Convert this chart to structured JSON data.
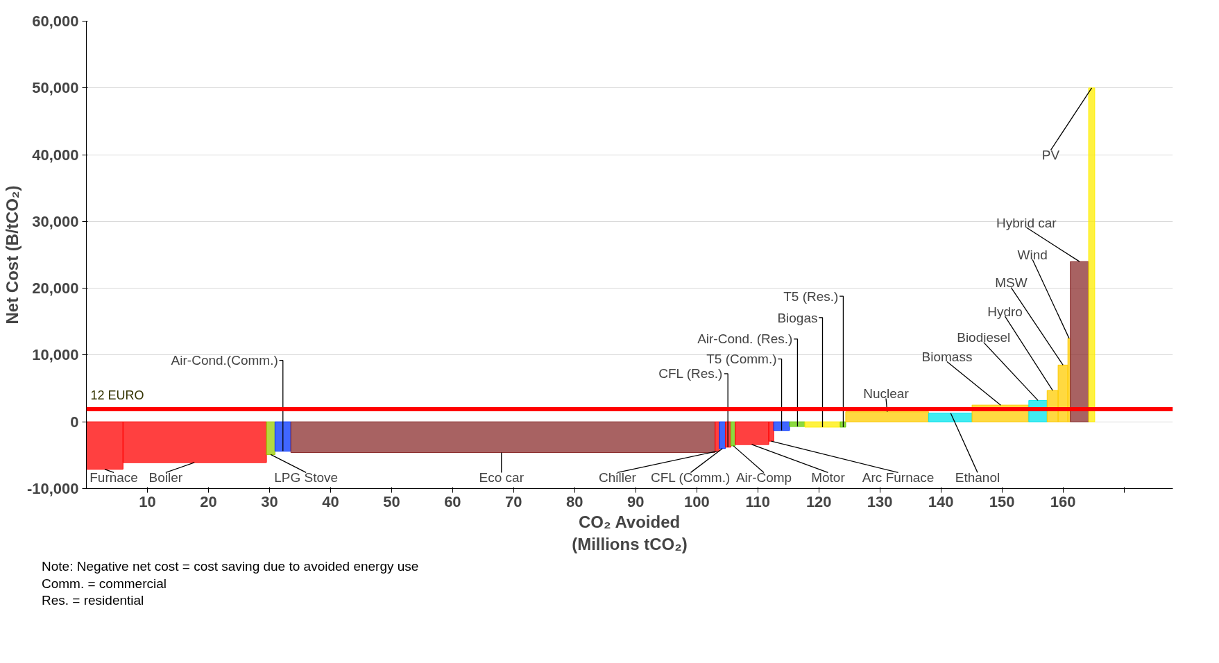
{
  "chart_data": {
    "type": "histogram",
    "xlabel": "CO₂ Avoided\n(Millions tCO₂)",
    "ylabel": "Net Cost (B/tCO₂)",
    "bins": [
      0,
      6.0,
      29.5,
      30.9,
      33.5,
      103.0,
      103.7,
      104.7,
      105.6,
      106.3,
      111.8,
      112.6,
      115.2,
      117.7,
      123.5,
      124.4,
      138.0,
      145.1,
      154.4,
      157.4,
      159.2,
      160.8,
      161.2,
      164.2,
      165.2
    ],
    "values": [
      -7100,
      -6100,
      -4900,
      -4400,
      -4600,
      -4400,
      -4000,
      -3800,
      -3600,
      -3400,
      -2900,
      -1300,
      -700,
      -800,
      -800,
      1500,
      1300,
      2500,
      3200,
      4700,
      8500,
      12500,
      24000,
      50000
    ],
    "colors": [
      "#ff0000",
      "#ff0000",
      "#99cc00",
      "#0033ff",
      "#8b2d2d",
      "#ff0000",
      "#0033ff",
      "#ff0000",
      "#66cc00",
      "#ff0000",
      "#ff0000",
      "#0033ff",
      "#66cc00",
      "#ffee00",
      "#66cc00",
      "#ffcc00",
      "#00e5ee",
      "#ffcc00",
      "#00e5ee",
      "#ffcc00",
      "#ffcc00",
      "#ffcc00",
      "#8b2d2d",
      "#ffee00"
    ],
    "xlim": [
      0,
      178
    ],
    "xticks": [
      10,
      20,
      30,
      40,
      50,
      60,
      70,
      80,
      90,
      100,
      110,
      120,
      130,
      140,
      150,
      160,
      {
        "value": 170,
        "label": null
      }
    ],
    "ylim": [
      -10000,
      60000
    ],
    "yticks": [
      {
        "value": -10000,
        "label": "-10,000"
      },
      0,
      {
        "value": 10000,
        "label": "10,000"
      },
      {
        "value": 20000,
        "label": "20,000"
      },
      {
        "value": 30000,
        "label": "30,000"
      },
      {
        "value": 40000,
        "label": "40,000"
      },
      {
        "value": 50000,
        "label": "50,000"
      },
      {
        "value": 60000,
        "label": "60,000"
      }
    ],
    "grid": "y",
    "ref_lines": [
      {
        "axis": "y",
        "value": 1900,
        "label": "12 EURO",
        "color": "#ff0000"
      }
    ],
    "annotations": [
      {
        "text": "Furnace",
        "x": 3.0,
        "y": -7100
      },
      {
        "text": "Boiler",
        "x": 17.7,
        "y": -6100
      },
      {
        "text": "LPG Stove",
        "x": 30.2,
        "y": -4900
      },
      {
        "text": "Air-Cond.(Comm.)",
        "x": 32.2,
        "y": -4400
      },
      {
        "text": "Eco car",
        "x": 68.0,
        "y": -4600
      },
      {
        "text": "Chiller",
        "x": 103.3,
        "y": -4400
      },
      {
        "text": "CFL (Comm.)",
        "x": 104.2,
        "y": -4000
      },
      {
        "text": "CFL (Res.)",
        "x": 105.1,
        "y": -3800
      },
      {
        "text": "Air-Comp",
        "x": 106.0,
        "y": -3600
      },
      {
        "text": "Motor",
        "x": 109.0,
        "y": -3400
      },
      {
        "text": "Arc Furnace",
        "x": 112.2,
        "y": -2900
      },
      {
        "text": "T5 (Comm.)",
        "x": 113.9,
        "y": -1300
      },
      {
        "text": "Air-Cond. (Res.)",
        "x": 116.5,
        "y": -700
      },
      {
        "text": "Biogas",
        "x": 120.6,
        "y": -800
      },
      {
        "text": "T5 (Res.)",
        "x": 124.0,
        "y": -800
      },
      {
        "text": "Nuclear",
        "x": 131.2,
        "y": 1500
      },
      {
        "text": "Ethanol",
        "x": 141.6,
        "y": 1300
      },
      {
        "text": "Biomass",
        "x": 149.8,
        "y": 2500
      },
      {
        "text": "Biodiesel",
        "x": 155.9,
        "y": 3200
      },
      {
        "text": "Hydro",
        "x": 158.3,
        "y": 4700
      },
      {
        "text": "MSW",
        "x": 160.0,
        "y": 8500
      },
      {
        "text": "Wind",
        "x": 161.0,
        "y": 12500
      },
      {
        "text": "Hybrid car",
        "x": 162.7,
        "y": 24000
      },
      {
        "text": "PV",
        "x": 164.7,
        "y": 50000
      },
      "Note: Negative net cost = cost saving due to avoided energy use",
      "Comm. = commercial",
      "Res. = residential"
    ]
  }
}
